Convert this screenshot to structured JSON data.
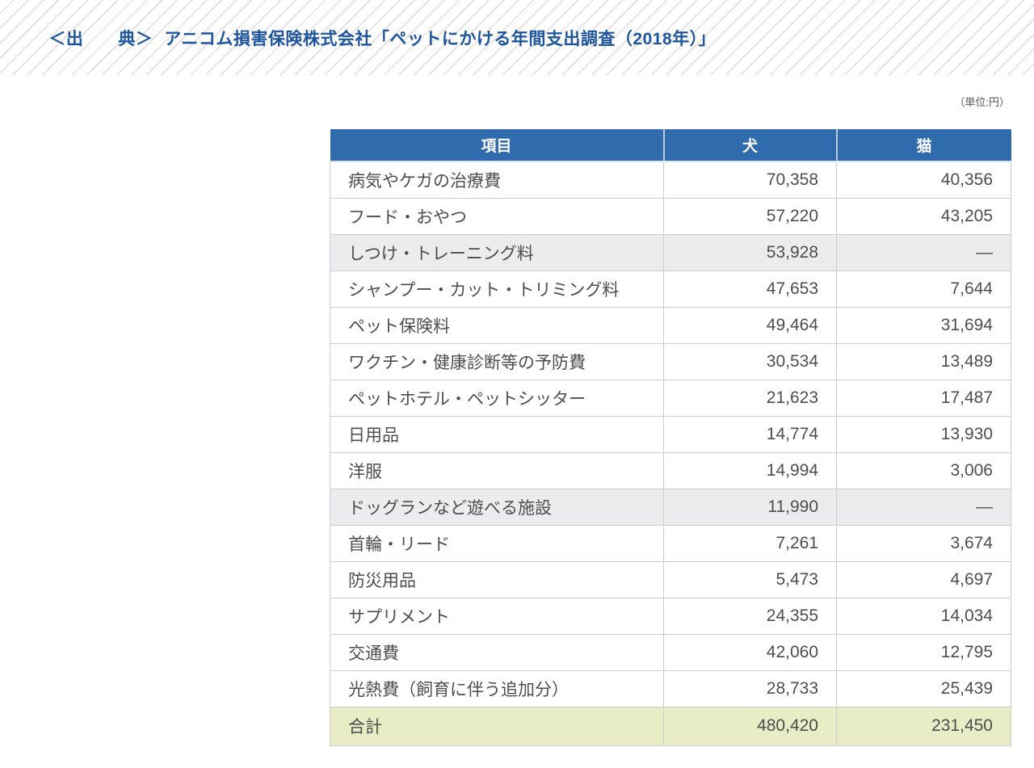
{
  "source_banner": {
    "label": "＜出　　典＞",
    "text": "アニコム損害保険株式会社「ペットにかける年間支出調査（2018年）」"
  },
  "unit_label": "（単位:円）",
  "colors": {
    "banner_text": "#1d559e",
    "banner_stripe": "#e7e5e4",
    "header_bg": "#2f6bad",
    "header_text": "#ffffff",
    "body_text": "#4d4d4d",
    "row_highlight_bg": "#ececee",
    "total_row_bg": "#e9edc5",
    "border": "#cccccc"
  },
  "table": {
    "columns": [
      "項目",
      "犬",
      "猫"
    ],
    "rows": [
      {
        "item": "病気やケガの治療費",
        "dog": "70,358",
        "cat": "40,356",
        "highlight": false
      },
      {
        "item": "フード・おやつ",
        "dog": "57,220",
        "cat": "43,205",
        "highlight": false
      },
      {
        "item": "しつけ・トレーニング料",
        "dog": "53,928",
        "cat": "—",
        "highlight": true
      },
      {
        "item": "シャンプー・カット・トリミング料",
        "dog": "47,653",
        "cat": "7,644",
        "highlight": false
      },
      {
        "item": "ペット保険料",
        "dog": "49,464",
        "cat": "31,694",
        "highlight": false
      },
      {
        "item": "ワクチン・健康診断等の予防費",
        "dog": "30,534",
        "cat": "13,489",
        "highlight": false
      },
      {
        "item": "ペットホテル・ペットシッター",
        "dog": "21,623",
        "cat": "17,487",
        "highlight": false
      },
      {
        "item": "日用品",
        "dog": "14,774",
        "cat": "13,930",
        "highlight": false
      },
      {
        "item": "洋服",
        "dog": "14,994",
        "cat": "3,006",
        "highlight": false
      },
      {
        "item": "ドッグランなど遊べる施設",
        "dog": "11,990",
        "cat": "—",
        "highlight": true
      },
      {
        "item": "首輪・リード",
        "dog": "7,261",
        "cat": "3,674",
        "highlight": false
      },
      {
        "item": "防災用品",
        "dog": "5,473",
        "cat": "4,697",
        "highlight": false
      },
      {
        "item": "サプリメント",
        "dog": "24,355",
        "cat": "14,034",
        "highlight": false
      },
      {
        "item": "交通費",
        "dog": "42,060",
        "cat": "12,795",
        "highlight": false
      },
      {
        "item": "光熱費（飼育に伴う追加分）",
        "dog": "28,733",
        "cat": "25,439",
        "highlight": false
      }
    ],
    "total": {
      "item": "合計",
      "dog": "480,420",
      "cat": "231,450"
    }
  }
}
